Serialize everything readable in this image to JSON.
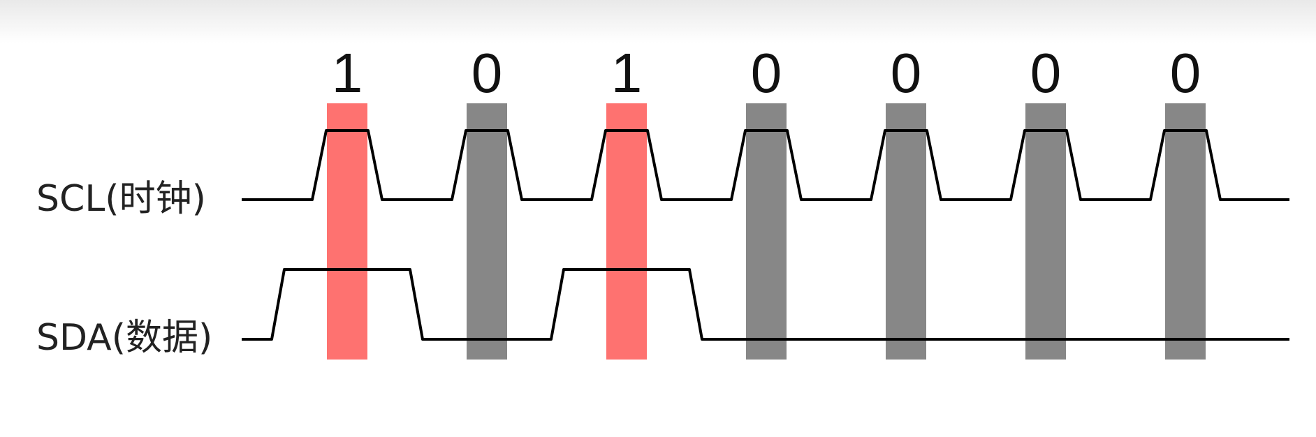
{
  "signals": {
    "scl": {
      "label": "SCL(时钟)"
    },
    "sda": {
      "label": "SDA(数据)"
    }
  },
  "bits": [
    "1",
    "0",
    "1",
    "0",
    "0",
    "0",
    "0"
  ],
  "colors": {
    "bit_one_highlight": "#fe7270",
    "bit_zero_highlight": "#878787",
    "waveform": "#000000"
  }
}
